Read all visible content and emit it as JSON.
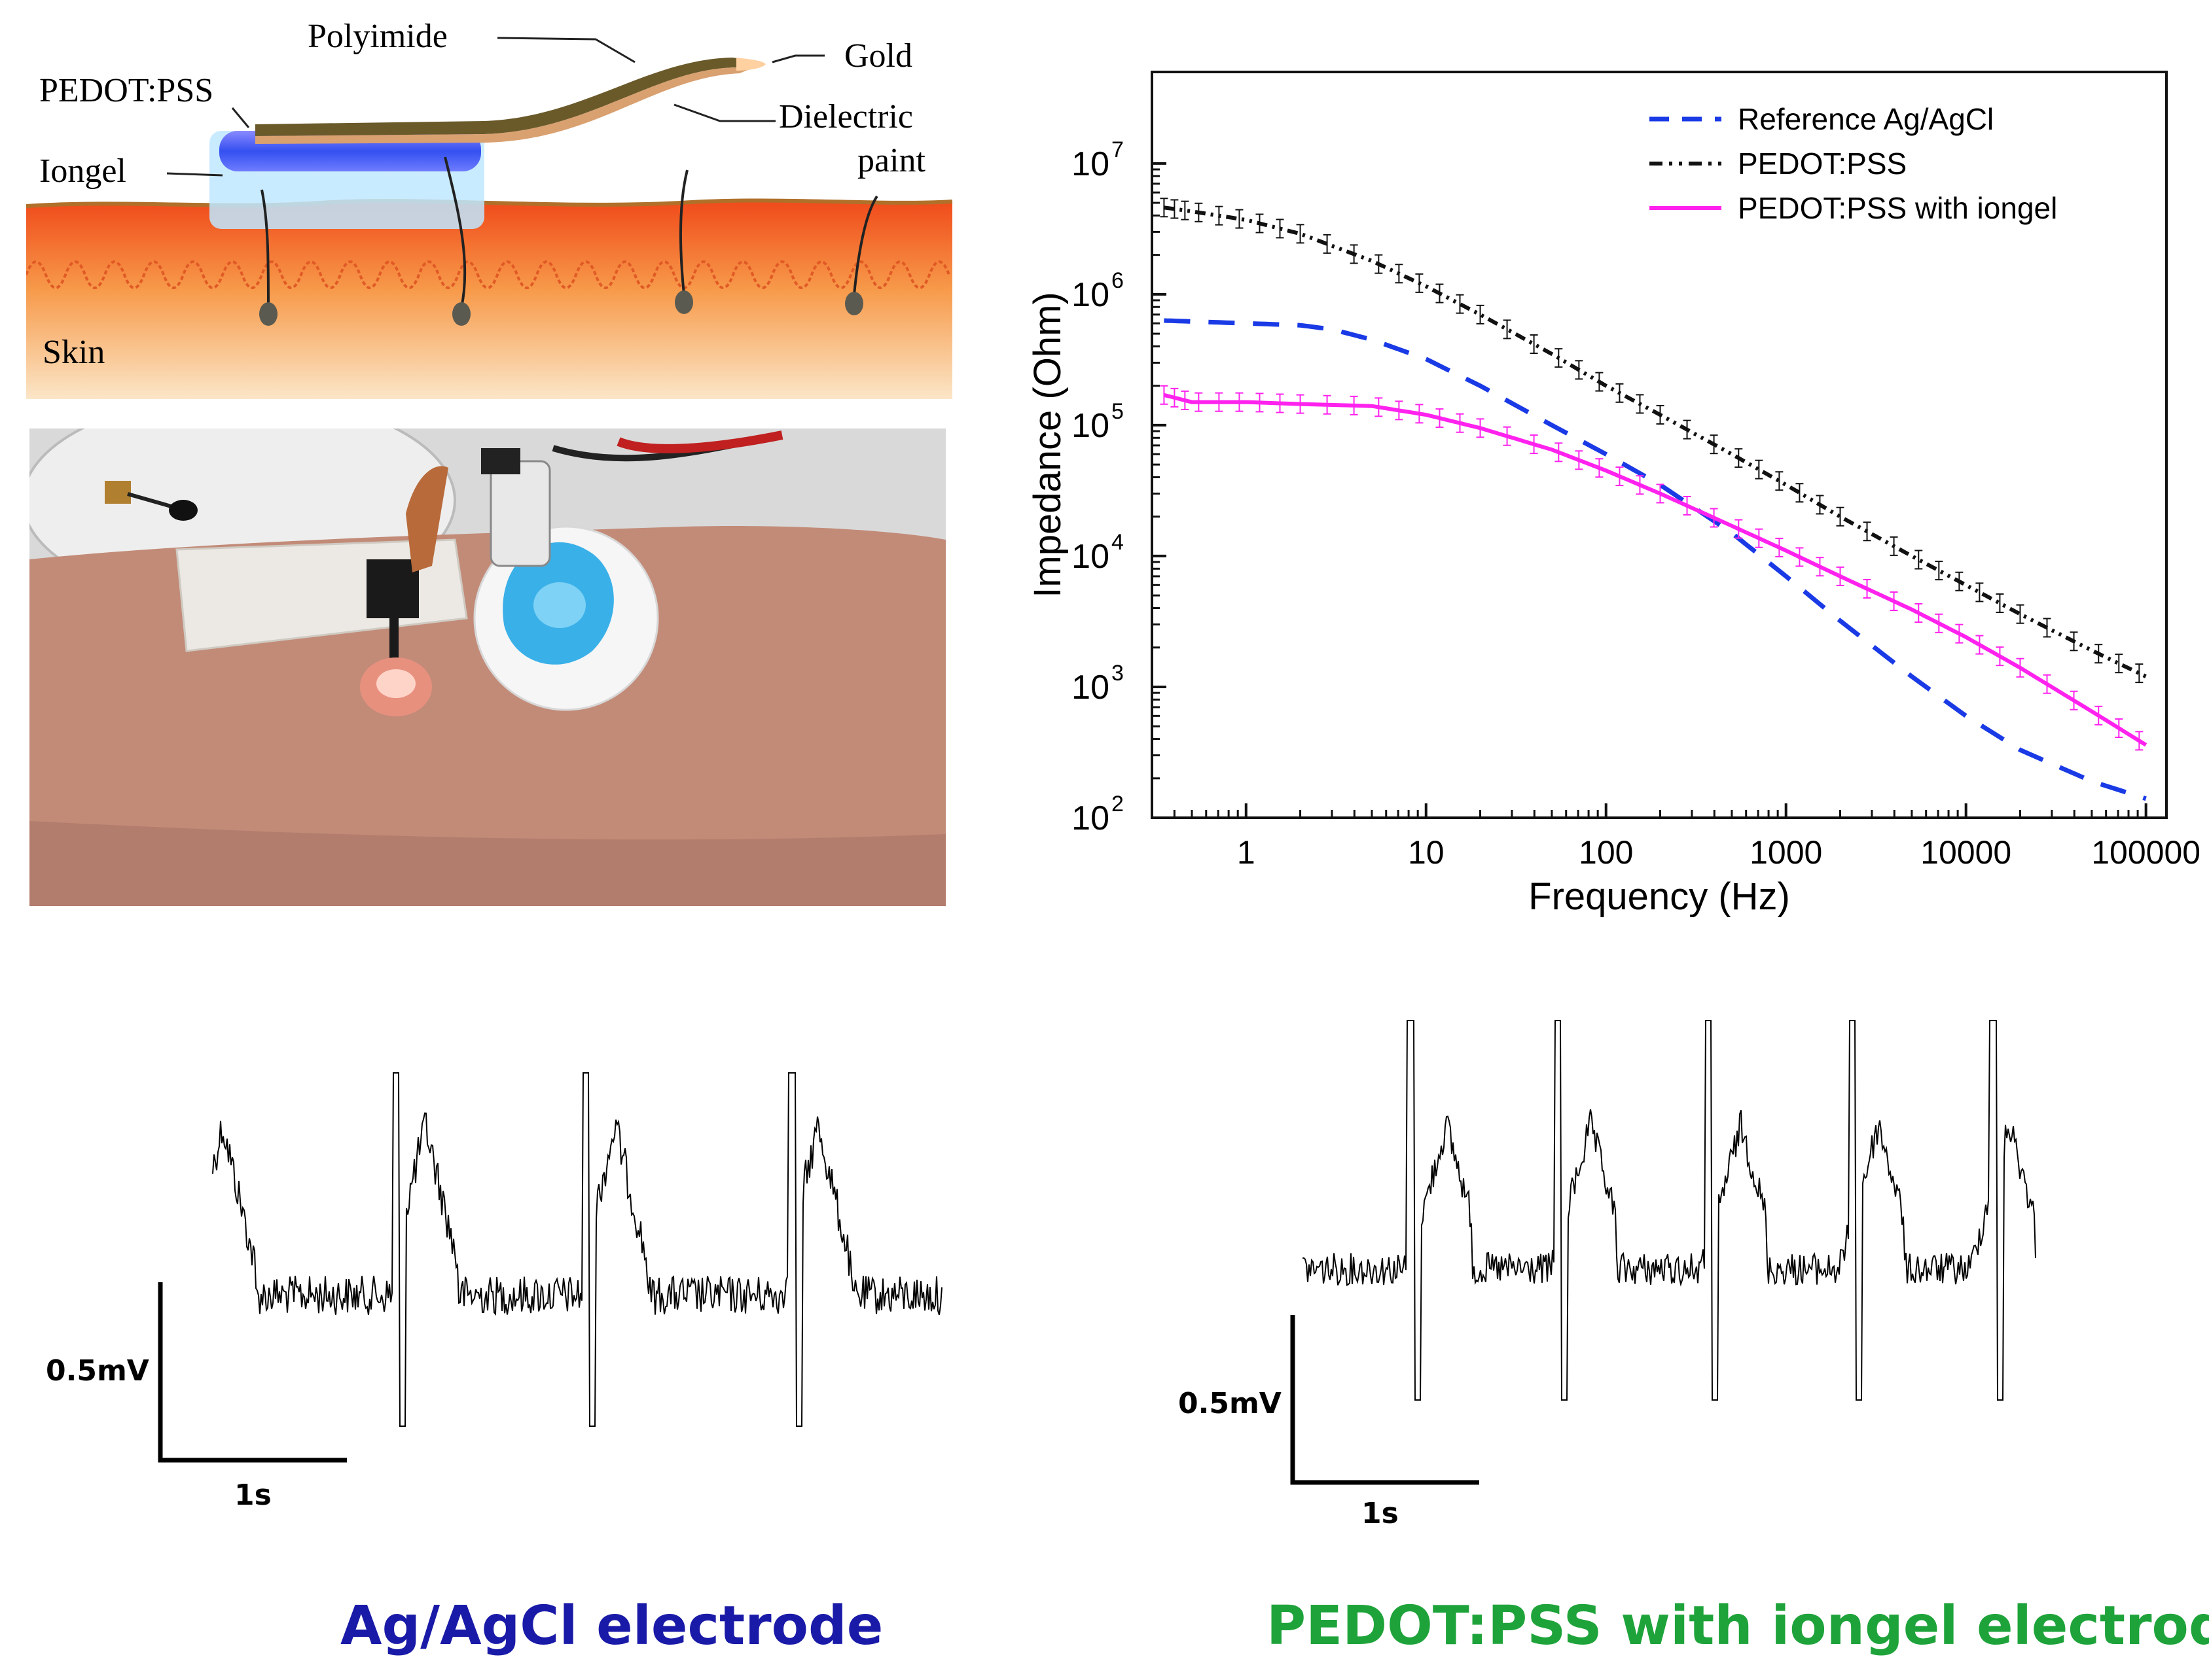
{
  "schematic": {
    "labels": {
      "polyimide": "Polyimide",
      "gold": "Gold",
      "pedot": "PEDOT:PSS",
      "dielectric_line1": "Dielectric",
      "dielectric_line2": "paint",
      "iongel": "Iongel",
      "skin": "Skin"
    }
  },
  "photo": {
    "colors": {
      "skin": "#c08a78",
      "background": "#d8d8d8",
      "gel": "#3ab0e8"
    }
  },
  "impedance_chart": {
    "ylabel": "Impedance (Ohm)",
    "xlabel": "Frequency (Hz)",
    "x_ticks": [
      "1",
      "10",
      "100",
      "1000",
      "10000",
      "100000"
    ],
    "y_ticks": [
      {
        "base": "10",
        "exp": "2"
      },
      {
        "base": "10",
        "exp": "3"
      },
      {
        "base": "10",
        "exp": "4"
      },
      {
        "base": "10",
        "exp": "5"
      },
      {
        "base": "10",
        "exp": "6"
      },
      {
        "base": "10",
        "exp": "7"
      }
    ],
    "legend": [
      "Reference Ag/AgCl",
      "PEDOT:PSS",
      "PEDOT:PSS with iongel"
    ]
  },
  "chart_data": {
    "type": "line",
    "xlabel": "Frequency (Hz)",
    "ylabel": "Impedance (Ohm)",
    "xscale": "log",
    "yscale": "log",
    "xlim": [
      0.3,
      130000
    ],
    "ylim": [
      100,
      50000000
    ],
    "legend_position": "top-right",
    "series": [
      {
        "name": "Reference Ag/AgCl",
        "color": "#1a3ae6",
        "style": "dashed",
        "x": [
          0.35,
          0.5,
          1,
          2,
          3,
          5,
          10,
          20,
          50,
          100,
          200,
          500,
          1000,
          2000,
          5000,
          10000,
          20000,
          50000,
          100000
        ],
        "y": [
          630000,
          620000,
          600000,
          580000,
          540000,
          450000,
          320000,
          200000,
          100000,
          60000,
          35000,
          15000,
          7000,
          3200,
          1200,
          600,
          330,
          190,
          140
        ]
      },
      {
        "name": "PEDOT:PSS",
        "color": "#111111",
        "style": "dash-dot-dot",
        "x": [
          0.35,
          0.5,
          1,
          2,
          5,
          10,
          20,
          50,
          100,
          200,
          500,
          1000,
          2000,
          5000,
          10000,
          20000,
          50000,
          100000
        ],
        "y": [
          4600000,
          4300000,
          3700000,
          2900000,
          1800000,
          1150000,
          700000,
          350000,
          200000,
          120000,
          60000,
          35000,
          20000,
          10000,
          6000,
          3600,
          1900,
          1200
        ]
      },
      {
        "name": "PEDOT:PSS with iongel",
        "color": "#ff22ee",
        "style": "solid",
        "x": [
          0.35,
          0.5,
          1,
          2,
          5,
          10,
          20,
          50,
          100,
          200,
          500,
          1000,
          2000,
          5000,
          10000,
          20000,
          50000,
          100000
        ],
        "y": [
          170000,
          150000,
          150000,
          145000,
          140000,
          120000,
          95000,
          65000,
          45000,
          30000,
          17000,
          11000,
          7000,
          3900,
          2400,
          1400,
          650,
          360
        ]
      }
    ]
  },
  "ecg_left": {
    "scale_v": "0.5mV",
    "scale_t": "1s",
    "title": "Ag/AgCl electrode",
    "title_color": "#1a1aa8"
  },
  "ecg_right": {
    "scale_v": "0.5mV",
    "scale_t": "1s",
    "title": "PEDOT:PSS with iongel electrode",
    "title_color": "#1ea33a"
  }
}
